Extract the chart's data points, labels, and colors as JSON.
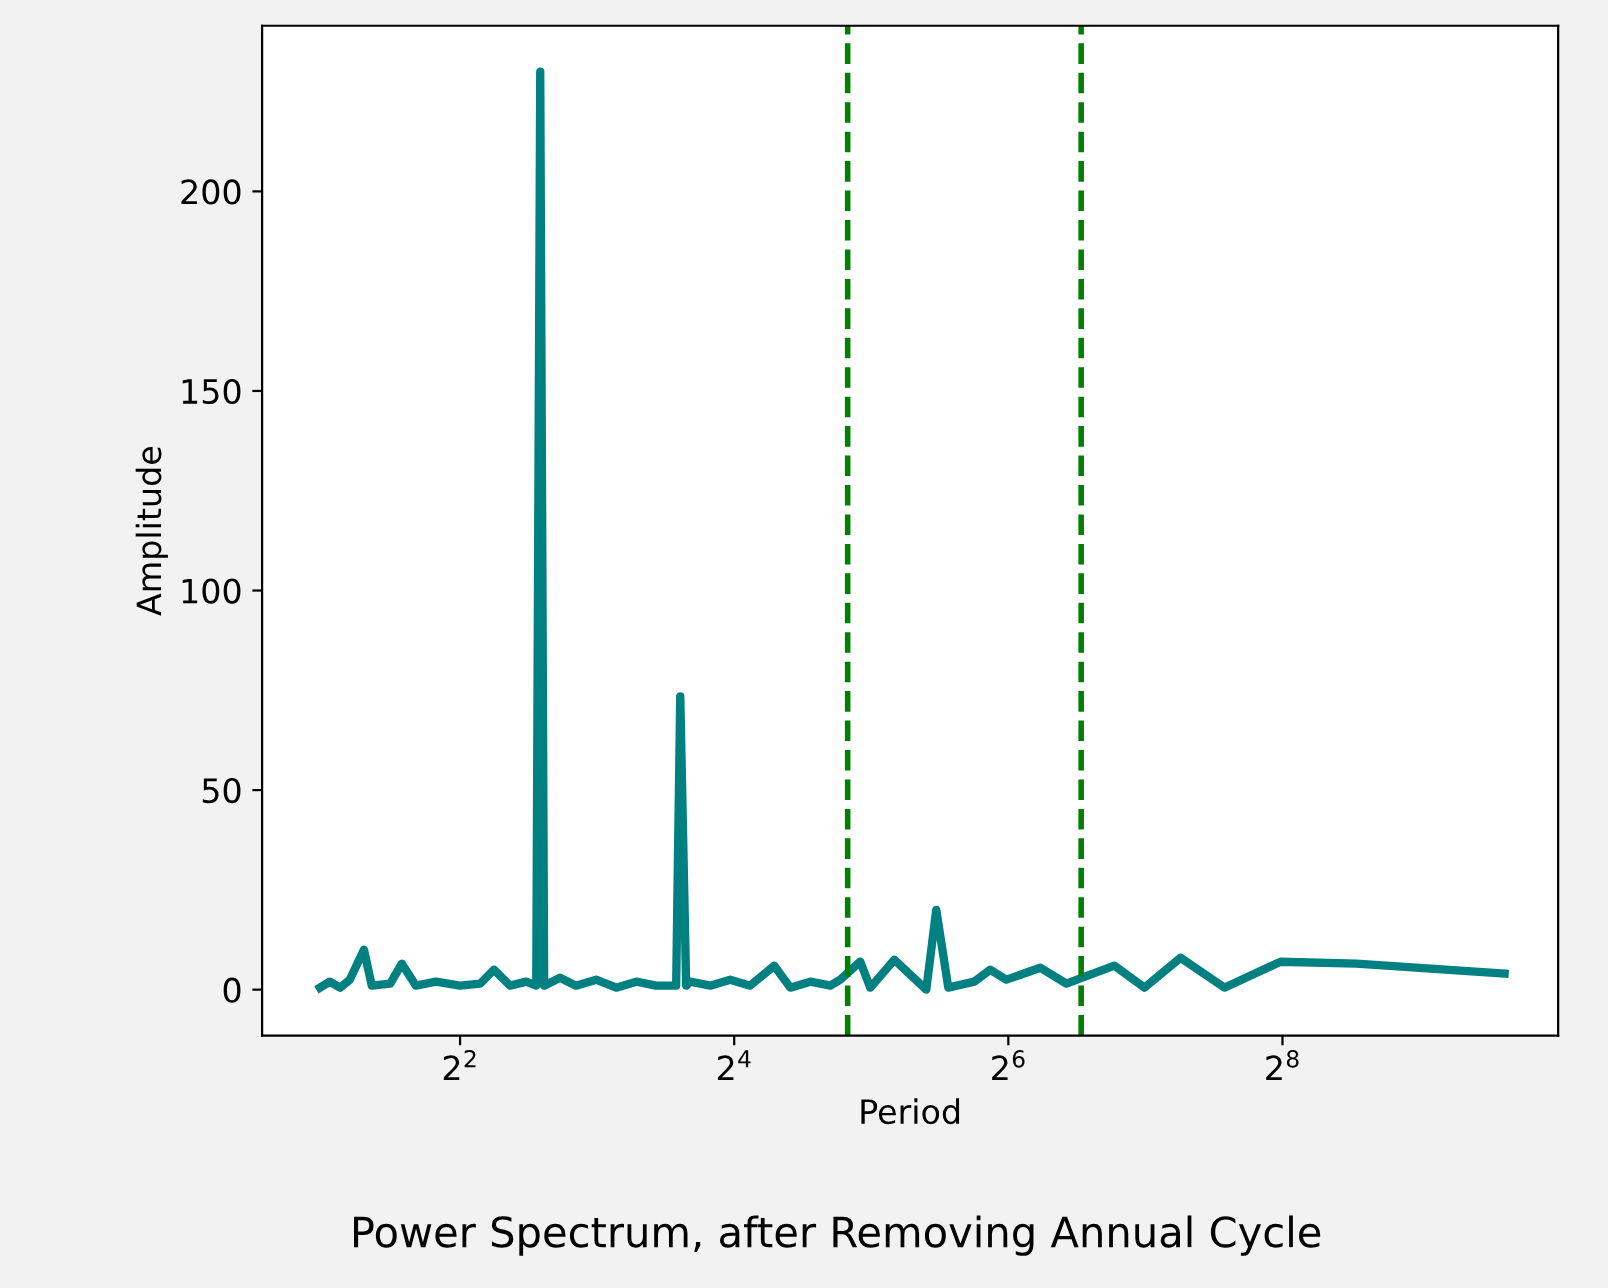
{
  "chart_data": {
    "type": "line",
    "xlabel": "Period",
    "ylabel": "Amplitude",
    "x": [
      1.97,
      2.07,
      2.18,
      2.29,
      2.46,
      2.56,
      2.81,
      2.98,
      3.2,
      3.54,
      4.0,
      4.43,
      4.75,
      5.15,
      5.59,
      5.88,
      6.0,
      6.12,
      6.63,
      7.19,
      7.96,
      8.81,
      9.75,
      10.78,
      11.69,
      11.93,
      12.18,
      12.55,
      12.81,
      14.17,
      15.68,
      17.35,
      19.59,
      21.25,
      23.51,
      26.01,
      27.36,
      30.27,
      31.85,
      35.96,
      42.26,
      44.45,
      47.24,
      53.89,
      58.44,
      63.35,
      75.26,
      85.83,
      109.4,
      127.4,
      152.9,
      190.9,
      253.4,
      372.2,
      787
    ],
    "series": [
      {
        "color": "#008080",
        "values": [
          0.5,
          2,
          0.5,
          2.5,
          10,
          1,
          1.5,
          6.5,
          1,
          2,
          1,
          1.5,
          5,
          1,
          2,
          1,
          230,
          1,
          3,
          1,
          2.5,
          0.5,
          2,
          1,
          1,
          1,
          73.5,
          1,
          2,
          1,
          2.5,
          1,
          6,
          0.5,
          2,
          1,
          2.5,
          7,
          0.5,
          7.5,
          0,
          20,
          0.5,
          2,
          5,
          2.5,
          5.5,
          1.5,
          6,
          0.5,
          8,
          0.5,
          7,
          6.5,
          4
        ]
      }
    ],
    "log": "x",
    "xlim": [
      1.47,
      1032
    ],
    "xticks": [
      {
        "value": 4,
        "label": "2$^{2}$"
      },
      {
        "value": 16,
        "label": "2$^{4}$"
      },
      {
        "value": 64,
        "label": "2$^{6}$"
      },
      {
        "value": 256,
        "label": "2$^{8}$"
      }
    ],
    "ylim": [
      -11.5,
      241.5
    ],
    "yticks": [
      0,
      50,
      100,
      150,
      200
    ],
    "ref_lines": [
      {
        "axis": "x",
        "value": 28.4,
        "color": "#008000",
        "line_style": "dashed"
      },
      {
        "axis": "x",
        "value": 92.5,
        "color": "#008000",
        "line_style": "dashed"
      }
    ],
    "grid": false,
    "line_style": "solid",
    "marker": "none",
    "annotations": [
      "Power Spectrum, after Removing Annual Cycle"
    ]
  }
}
